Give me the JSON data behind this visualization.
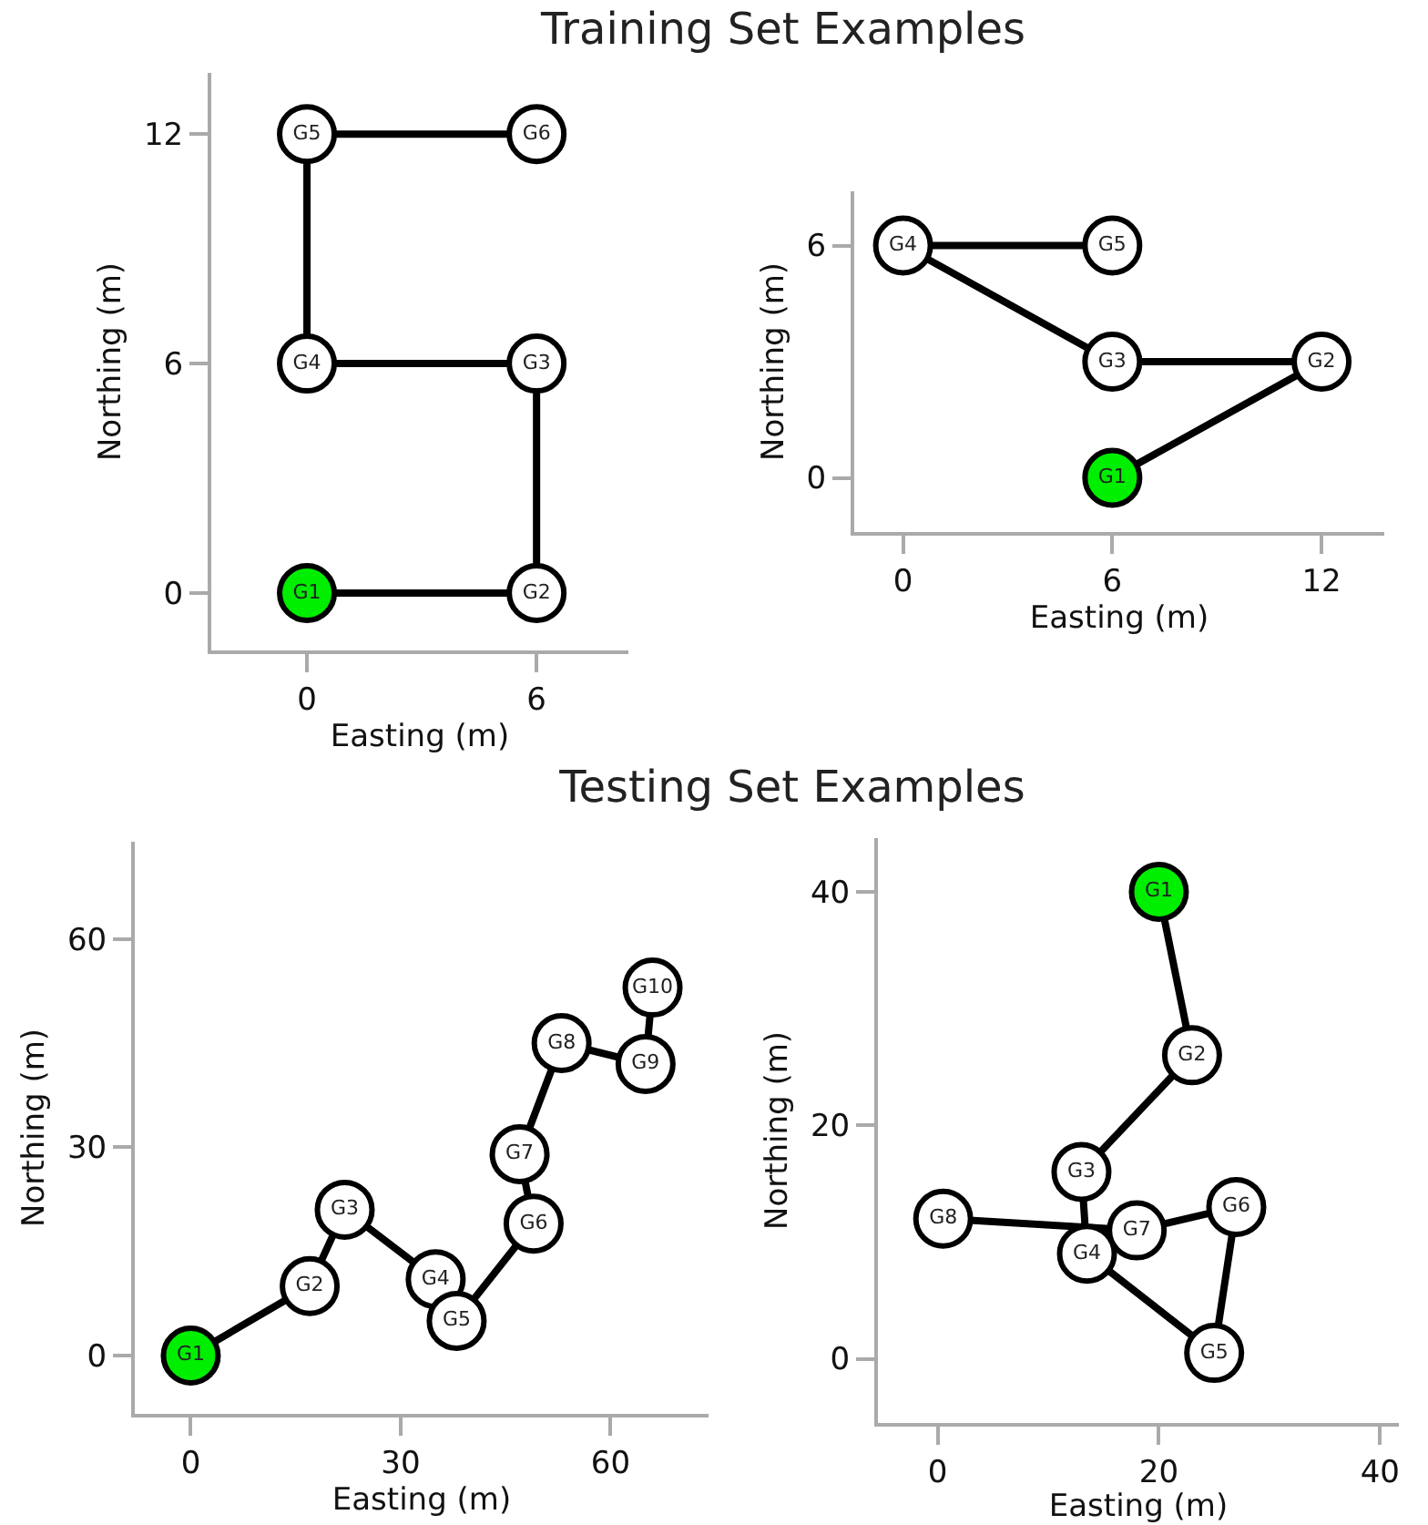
{
  "chart_data": [
    {
      "type": "line",
      "title": "Training Set Examples",
      "xlabel": "Easting (m)",
      "ylabel": "Northing (m)",
      "xlim": [
        -2.5,
        8.4
      ],
      "ylim": [
        -1.5,
        13.6
      ],
      "xticks": [
        0,
        6
      ],
      "yticks": [
        0,
        6,
        12
      ],
      "marker": "circle",
      "series": [
        {
          "color": "#000000",
          "x": [
            0,
            6,
            6,
            0,
            0,
            6
          ],
          "values": [
            0,
            0,
            6,
            6,
            12,
            12
          ],
          "colors": [
            "#00ee00",
            "#ffffff",
            "#ffffff",
            "#ffffff",
            "#ffffff",
            "#ffffff"
          ],
          "value_labels": [
            "G1",
            "G2",
            "G3",
            "G4",
            "G5",
            "G6"
          ]
        }
      ]
    },
    {
      "type": "line",
      "xlabel": "Easting (m)",
      "ylabel": "Northing (m)",
      "xlim": [
        -1.4,
        13.8
      ],
      "ylim": [
        -1.4,
        7.4
      ],
      "xticks": [
        0,
        6,
        12
      ],
      "yticks": [
        0,
        6
      ],
      "marker": "circle",
      "series": [
        {
          "color": "#000000",
          "x": [
            6,
            12,
            6,
            0,
            6
          ],
          "values": [
            0,
            3,
            3,
            6,
            6
          ],
          "colors": [
            "#00ee00",
            "#ffffff",
            "#ffffff",
            "#ffffff",
            "#ffffff"
          ],
          "value_labels": [
            "G1",
            "G2",
            "G3",
            "G4",
            "G5"
          ]
        }
      ]
    },
    {
      "type": "line",
      "title": "Testing Set Examples",
      "xlabel": "Easting (m)",
      "ylabel": "Northing (m)",
      "xlim": [
        -8,
        74
      ],
      "ylim": [
        -8.4,
        74
      ],
      "xticks": [
        0,
        30,
        60
      ],
      "yticks": [
        0,
        30,
        60
      ],
      "marker": "circle",
      "series": [
        {
          "color": "#000000",
          "x": [
            0,
            17,
            22,
            35,
            38,
            49,
            47,
            53,
            65,
            66
          ],
          "values": [
            0,
            10,
            21,
            11,
            5,
            19,
            29,
            45,
            42,
            53
          ],
          "colors": [
            "#00ee00",
            "#ffffff",
            "#ffffff",
            "#ffffff",
            "#ffffff",
            "#ffffff",
            "#ffffff",
            "#ffffff",
            "#ffffff",
            "#ffffff"
          ],
          "value_labels": [
            "G1",
            "G2",
            "G3",
            "G4",
            "G5",
            "G6",
            "G7",
            "G8",
            "G9",
            "G10"
          ]
        }
      ]
    },
    {
      "type": "line",
      "xlabel": "Easting (m)",
      "ylabel": "Northing (m)",
      "xlim": [
        -5.4,
        41.7
      ],
      "ylim": [
        -5.5,
        44.6
      ],
      "xticks": [
        0,
        20,
        40
      ],
      "yticks": [
        0,
        20,
        40
      ],
      "marker": "circle",
      "series": [
        {
          "color": "#000000",
          "x": [
            20,
            23,
            13,
            13.5,
            25,
            27,
            18,
            0.5
          ],
          "values": [
            40,
            26,
            16,
            9,
            0.5,
            13,
            11,
            12
          ],
          "colors": [
            "#00ee00",
            "#ffffff",
            "#ffffff",
            "#ffffff",
            "#ffffff",
            "#ffffff",
            "#ffffff",
            "#ffffff"
          ],
          "value_labels": [
            "G1",
            "G2",
            "G3",
            "G4",
            "G5",
            "G6",
            "G7",
            "G8"
          ]
        }
      ]
    }
  ]
}
